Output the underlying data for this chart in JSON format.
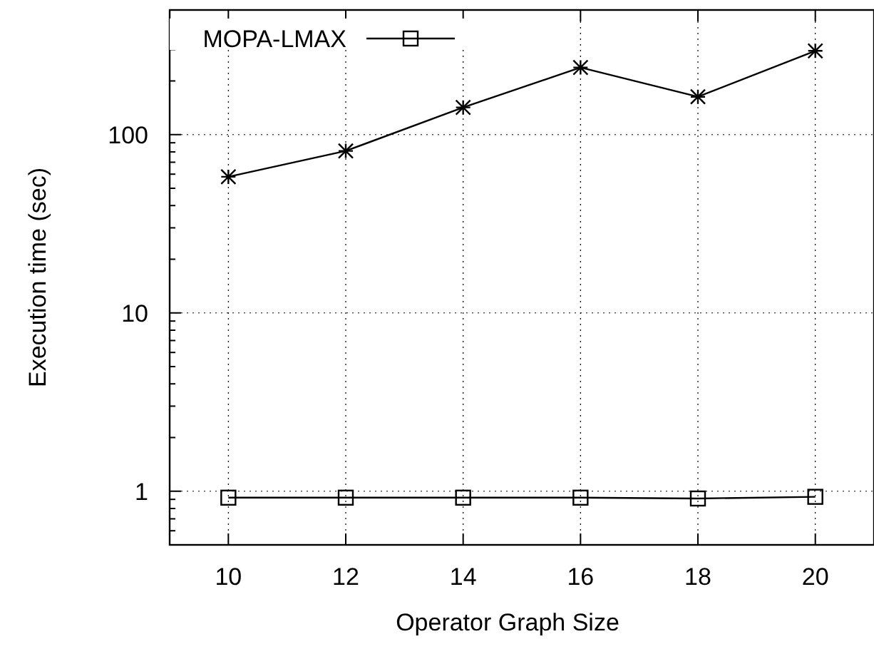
{
  "chart_data": {
    "type": "line",
    "xlabel": "Operator Graph Size",
    "ylabel": "Execution time (sec)",
    "x": [
      10,
      12,
      14,
      16,
      18,
      20
    ],
    "xlim": [
      9,
      21
    ],
    "xticks": [
      10,
      12,
      14,
      16,
      18,
      20
    ],
    "log": "y",
    "ylim": [
      0.5,
      500
    ],
    "yticks": [
      {
        "value": 0.5,
        "label": null
      },
      {
        "value": 0.6,
        "label": null
      },
      {
        "value": 0.7,
        "label": null
      },
      {
        "value": 0.8,
        "label": null
      },
      {
        "value": 0.9,
        "label": null
      },
      1,
      {
        "value": 2,
        "label": null
      },
      {
        "value": 3,
        "label": null
      },
      {
        "value": 4,
        "label": null
      },
      {
        "value": 5,
        "label": null
      },
      {
        "value": 6,
        "label": null
      },
      {
        "value": 7,
        "label": null
      },
      {
        "value": 8,
        "label": null
      },
      {
        "value": 9,
        "label": null
      },
      10,
      {
        "value": 20,
        "label": null
      },
      {
        "value": 30,
        "label": null
      },
      {
        "value": 40,
        "label": null
      },
      {
        "value": 50,
        "label": null
      },
      {
        "value": 60,
        "label": null
      },
      {
        "value": 70,
        "label": null
      },
      {
        "value": 80,
        "label": null
      },
      {
        "value": 90,
        "label": null
      },
      100,
      {
        "value": 200,
        "label": null
      },
      {
        "value": 300,
        "label": null
      },
      {
        "value": 400,
        "label": null
      },
      {
        "value": 500,
        "label": null
      }
    ],
    "grid": true,
    "legend": "top left",
    "line_style": "solid",
    "series": [
      {
        "name": "MOPA-LMAX",
        "color": "#000000",
        "marker": "square",
        "values": [
          0.92,
          0.92,
          0.92,
          0.92,
          0.91,
          0.93
        ]
      },
      {
        "color": "#000000",
        "marker": "cross",
        "values": [
          58,
          81,
          142,
          238,
          163,
          295
        ]
      }
    ]
  }
}
